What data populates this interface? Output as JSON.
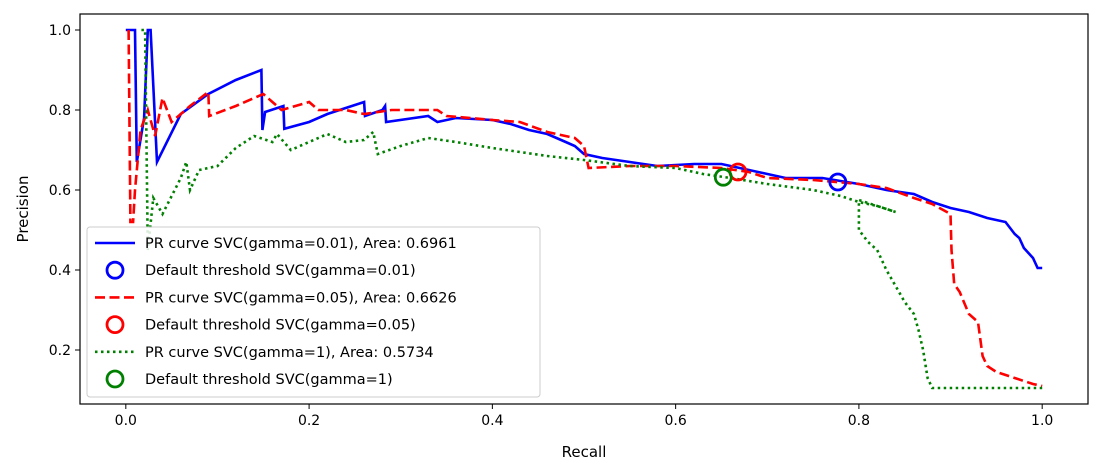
{
  "chart_data": {
    "type": "line",
    "title": "",
    "xlabel": "Recall",
    "ylabel": "Precision",
    "xlim": [
      -0.05,
      1.05
    ],
    "ylim": [
      0.065,
      1.04
    ],
    "xticks": [
      0.0,
      0.2,
      0.4,
      0.6,
      0.8,
      1.0
    ],
    "xtick_labels": [
      "0.0",
      "0.2",
      "0.4",
      "0.6",
      "0.8",
      "1.0"
    ],
    "yticks": [
      0.2,
      0.4,
      0.6,
      0.8,
      1.0
    ],
    "ytick_labels": [
      "0.2",
      "0.4",
      "0.6",
      "0.8",
      "1.0"
    ],
    "grid": false,
    "legend_position": "lower-left",
    "series": [
      {
        "name": "PR curve SVC(gamma=0.01), Area: 0.6961",
        "kind": "line",
        "color": "#0000ff",
        "dash": "solid",
        "points": [
          [
            0.0,
            1.0
          ],
          [
            0.01,
            1.0
          ],
          [
            0.012,
            0.67
          ],
          [
            0.02,
            0.78
          ],
          [
            0.024,
            1.0
          ],
          [
            0.027,
            1.0
          ],
          [
            0.034,
            0.67
          ],
          [
            0.06,
            0.79
          ],
          [
            0.09,
            0.84
          ],
          [
            0.12,
            0.875
          ],
          [
            0.148,
            0.9
          ],
          [
            0.149,
            0.75
          ],
          [
            0.152,
            0.795
          ],
          [
            0.172,
            0.81
          ],
          [
            0.173,
            0.753
          ],
          [
            0.2,
            0.77
          ],
          [
            0.22,
            0.79
          ],
          [
            0.24,
            0.805
          ],
          [
            0.26,
            0.82
          ],
          [
            0.261,
            0.785
          ],
          [
            0.28,
            0.8
          ],
          [
            0.283,
            0.81
          ],
          [
            0.284,
            0.77
          ],
          [
            0.33,
            0.785
          ],
          [
            0.34,
            0.77
          ],
          [
            0.36,
            0.78
          ],
          [
            0.4,
            0.775
          ],
          [
            0.42,
            0.765
          ],
          [
            0.44,
            0.75
          ],
          [
            0.46,
            0.74
          ],
          [
            0.47,
            0.73
          ],
          [
            0.48,
            0.72
          ],
          [
            0.49,
            0.71
          ],
          [
            0.5,
            0.69
          ],
          [
            0.52,
            0.68
          ],
          [
            0.55,
            0.67
          ],
          [
            0.58,
            0.66
          ],
          [
            0.62,
            0.665
          ],
          [
            0.65,
            0.665
          ],
          [
            0.68,
            0.65
          ],
          [
            0.72,
            0.63
          ],
          [
            0.76,
            0.63
          ],
          [
            0.8,
            0.615
          ],
          [
            0.83,
            0.6
          ],
          [
            0.86,
            0.59
          ],
          [
            0.88,
            0.57
          ],
          [
            0.9,
            0.555
          ],
          [
            0.92,
            0.545
          ],
          [
            0.94,
            0.53
          ],
          [
            0.96,
            0.52
          ],
          [
            0.97,
            0.49
          ],
          [
            0.975,
            0.48
          ],
          [
            0.98,
            0.455
          ],
          [
            0.99,
            0.43
          ],
          [
            0.995,
            0.405
          ],
          [
            1.0,
            0.405
          ]
        ]
      },
      {
        "name": "Default threshold SVC(gamma=0.01)",
        "kind": "marker",
        "color": "#0000ff",
        "x": 0.777,
        "y": 0.62
      },
      {
        "name": "PR curve SVC(gamma=0.05), Area: 0.6626",
        "kind": "line",
        "color": "#ff0000",
        "dash": "dashed",
        "points": [
          [
            0.003,
            1.0
          ],
          [
            0.005,
            0.52
          ],
          [
            0.008,
            0.52
          ],
          [
            0.01,
            0.6
          ],
          [
            0.016,
            0.75
          ],
          [
            0.024,
            0.8
          ],
          [
            0.032,
            0.735
          ],
          [
            0.04,
            0.83
          ],
          [
            0.05,
            0.77
          ],
          [
            0.07,
            0.81
          ],
          [
            0.09,
            0.845
          ],
          [
            0.091,
            0.785
          ],
          [
            0.12,
            0.81
          ],
          [
            0.15,
            0.84
          ],
          [
            0.16,
            0.82
          ],
          [
            0.17,
            0.8
          ],
          [
            0.2,
            0.82
          ],
          [
            0.21,
            0.8
          ],
          [
            0.24,
            0.8
          ],
          [
            0.26,
            0.79
          ],
          [
            0.29,
            0.8
          ],
          [
            0.34,
            0.8
          ],
          [
            0.35,
            0.785
          ],
          [
            0.4,
            0.775
          ],
          [
            0.43,
            0.77
          ],
          [
            0.46,
            0.745
          ],
          [
            0.49,
            0.73
          ],
          [
            0.5,
            0.71
          ],
          [
            0.505,
            0.655
          ],
          [
            0.55,
            0.66
          ],
          [
            0.6,
            0.66
          ],
          [
            0.65,
            0.655
          ],
          [
            0.68,
            0.645
          ],
          [
            0.7,
            0.63
          ],
          [
            0.75,
            0.625
          ],
          [
            0.8,
            0.615
          ],
          [
            0.83,
            0.605
          ],
          [
            0.86,
            0.58
          ],
          [
            0.88,
            0.565
          ],
          [
            0.9,
            0.54
          ],
          [
            0.901,
            0.45
          ],
          [
            0.904,
            0.365
          ],
          [
            0.91,
            0.345
          ],
          [
            0.92,
            0.29
          ],
          [
            0.93,
            0.27
          ],
          [
            0.935,
            0.185
          ],
          [
            0.94,
            0.16
          ],
          [
            0.95,
            0.145
          ],
          [
            0.97,
            0.13
          ],
          [
            0.99,
            0.115
          ],
          [
            1.0,
            0.11
          ]
        ]
      },
      {
        "name": "Default threshold SVC(gamma=0.05)",
        "kind": "marker",
        "color": "#ff0000",
        "x": 0.668,
        "y": 0.645
      },
      {
        "name": "PR curve SVC(gamma=1), Area: 0.5734",
        "kind": "line",
        "color": "#008000",
        "dash": "dotted",
        "points": [
          [
            0.017,
            1.0
          ],
          [
            0.021,
            1.0
          ],
          [
            0.024,
            0.45
          ],
          [
            0.03,
            0.58
          ],
          [
            0.04,
            0.54
          ],
          [
            0.06,
            0.63
          ],
          [
            0.066,
            0.67
          ],
          [
            0.07,
            0.6
          ],
          [
            0.08,
            0.65
          ],
          [
            0.1,
            0.66
          ],
          [
            0.12,
            0.705
          ],
          [
            0.14,
            0.735
          ],
          [
            0.16,
            0.72
          ],
          [
            0.165,
            0.74
          ],
          [
            0.18,
            0.7
          ],
          [
            0.2,
            0.72
          ],
          [
            0.22,
            0.74
          ],
          [
            0.24,
            0.72
          ],
          [
            0.26,
            0.725
          ],
          [
            0.27,
            0.745
          ],
          [
            0.275,
            0.69
          ],
          [
            0.3,
            0.71
          ],
          [
            0.33,
            0.73
          ],
          [
            0.36,
            0.72
          ],
          [
            0.4,
            0.705
          ],
          [
            0.43,
            0.695
          ],
          [
            0.46,
            0.685
          ],
          [
            0.5,
            0.675
          ],
          [
            0.55,
            0.66
          ],
          [
            0.6,
            0.655
          ],
          [
            0.63,
            0.64
          ],
          [
            0.66,
            0.63
          ],
          [
            0.7,
            0.615
          ],
          [
            0.75,
            0.6
          ],
          [
            0.78,
            0.585
          ],
          [
            0.8,
            0.57
          ],
          [
            0.82,
            0.56
          ],
          [
            0.84,
            0.545
          ],
          [
            0.8,
            0.575
          ],
          [
            0.8,
            0.5
          ],
          [
            0.81,
            0.47
          ],
          [
            0.82,
            0.45
          ],
          [
            0.83,
            0.4
          ],
          [
            0.84,
            0.36
          ],
          [
            0.85,
            0.32
          ],
          [
            0.86,
            0.29
          ],
          [
            0.865,
            0.25
          ],
          [
            0.87,
            0.2
          ],
          [
            0.875,
            0.13
          ],
          [
            0.88,
            0.105
          ],
          [
            0.9,
            0.105
          ],
          [
            0.95,
            0.105
          ],
          [
            1.0,
            0.105
          ]
        ]
      },
      {
        "name": "Default threshold SVC(gamma=1)",
        "kind": "marker",
        "color": "#008000",
        "x": 0.652,
        "y": 0.632
      }
    ]
  }
}
